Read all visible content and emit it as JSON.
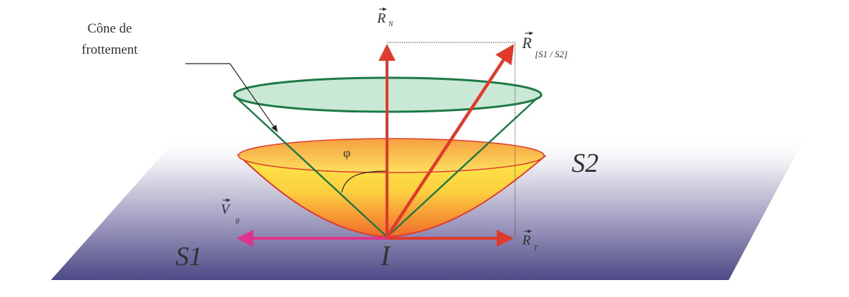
{
  "labels": {
    "cone_title_line1": "Cône de",
    "cone_title_line2": "frottement",
    "normal_force": "R",
    "normal_force_sub": "N",
    "resultant_force": "R",
    "resultant_force_sub": "[S1 / S2]",
    "tangential_force": "R",
    "tangential_force_sub": "T",
    "sliding_velocity": "V",
    "sliding_velocity_sub": "g",
    "angle": "φ",
    "solid_1": "S1",
    "solid_2": "S2",
    "contact_point": "I"
  },
  "colors": {
    "force_arrows": "#e03a2c",
    "velocity_arrow": "#e0348c",
    "friction_cone": "#1e7a45",
    "cone_fill_top": "#fde84a",
    "cone_fill_bottom": "#f06a2a",
    "plane_dark": "#4c4a86"
  }
}
